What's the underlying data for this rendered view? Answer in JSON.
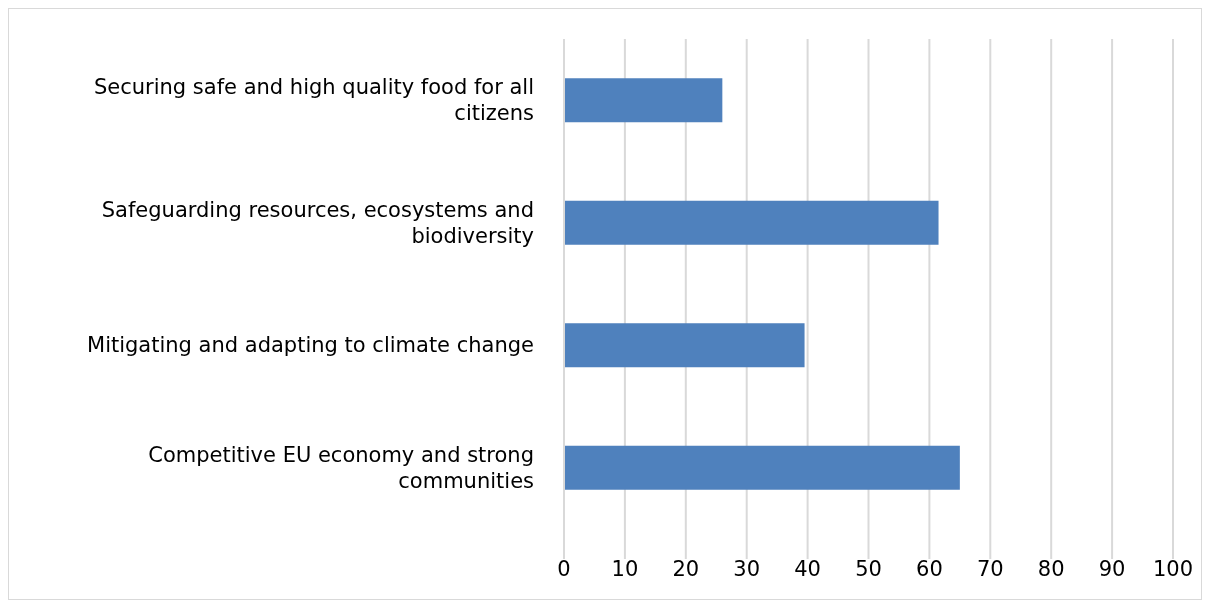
{
  "chart_data": {
    "type": "bar",
    "orientation": "horizontal",
    "categories": [
      "Securing safe and high quality food for all citizens",
      "Safeguarding resources, ecosystems and biodiversity",
      "Mitigating and adapting to climate change",
      "Competitive EU economy and strong communities"
    ],
    "values": [
      26,
      61.5,
      39.5,
      65
    ],
    "color": "#4f81bd",
    "xlim": [
      0,
      100
    ],
    "xticks": [
      0,
      10,
      20,
      30,
      40,
      50,
      60,
      70,
      80,
      90,
      100
    ],
    "grid": "x"
  }
}
